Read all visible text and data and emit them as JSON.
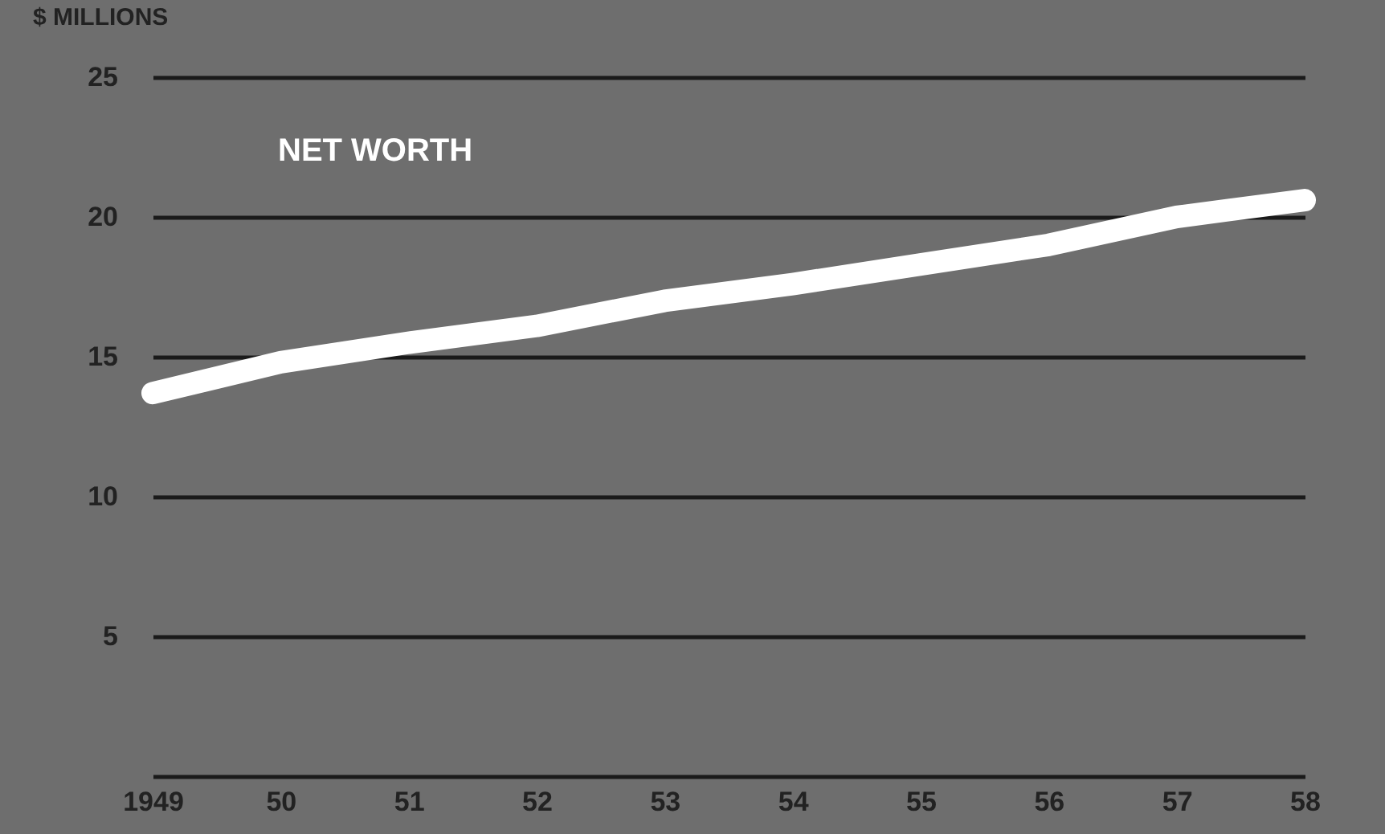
{
  "chart_data": {
    "type": "line",
    "ylabel": "$ MILLIONS",
    "categories": [
      "1949",
      "50",
      "51",
      "52",
      "53",
      "54",
      "55",
      "56",
      "57",
      "58"
    ],
    "series": [
      {
        "name": "NET WORTH",
        "color": "#ffffff",
        "values": [
          13.7,
          14.8,
          15.5,
          16.1,
          17.0,
          17.6,
          18.3,
          19.0,
          20.0,
          20.6
        ]
      }
    ],
    "ylim": [
      0,
      25
    ],
    "yticks": [
      {
        "value": 0,
        "label": null
      },
      5,
      10,
      15,
      20,
      25
    ],
    "grid": "y",
    "line_style": "solid"
  }
}
